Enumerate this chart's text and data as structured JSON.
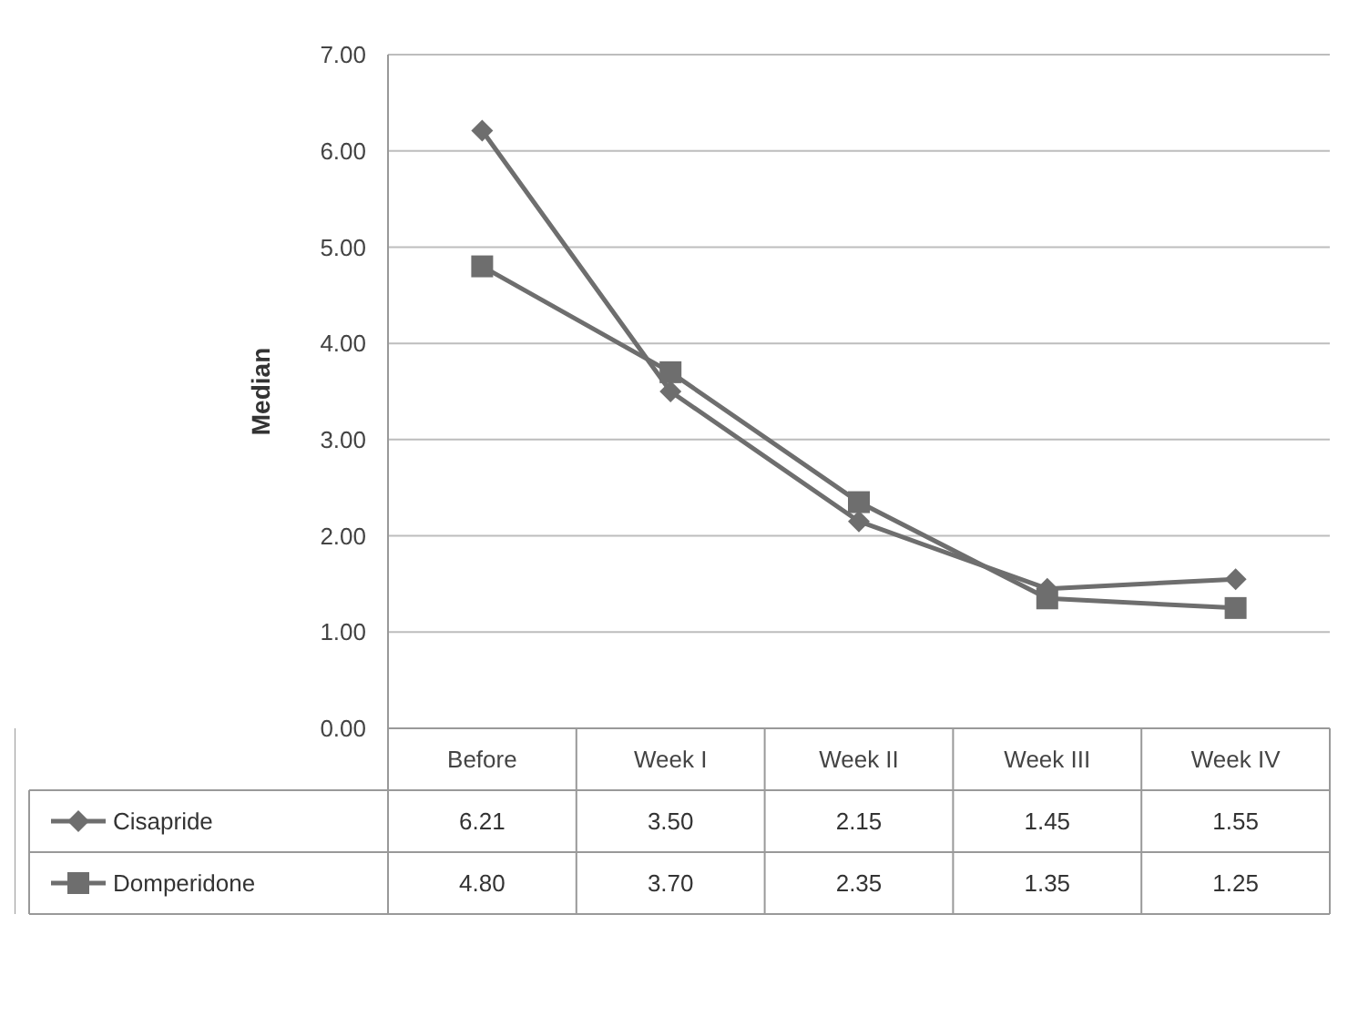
{
  "chart_data": {
    "type": "line",
    "ylabel": "Median",
    "categories": [
      "Before",
      "Week I",
      "Week II",
      "Week III",
      "Week IV"
    ],
    "series": [
      {
        "name": "Cisapride",
        "color": "#6e6e6e",
        "marker": "diamond",
        "values": [
          6.21,
          3.5,
          2.15,
          1.45,
          1.55
        ],
        "value_labels": [
          "6.21",
          "3.50",
          "2.15",
          "1.45",
          "1.55"
        ]
      },
      {
        "name": "Domperidone",
        "color": "#6e6e6e",
        "marker": "square",
        "values": [
          4.8,
          3.7,
          2.35,
          1.35,
          1.25
        ],
        "value_labels": [
          "4.80",
          "3.70",
          "2.35",
          "1.35",
          "1.25"
        ]
      }
    ],
    "ylim": [
      0,
      7
    ],
    "yticks": [
      {
        "value": 0,
        "label": "0.00"
      },
      {
        "value": 1,
        "label": "1.00"
      },
      {
        "value": 2,
        "label": "2.00"
      },
      {
        "value": 3,
        "label": "3.00"
      },
      {
        "value": 4,
        "label": "4.00"
      },
      {
        "value": 5,
        "label": "5.00"
      },
      {
        "value": 6,
        "label": "6.00"
      },
      {
        "value": 7,
        "label": "7.00"
      }
    ],
    "grid": "y",
    "legend": "bottom"
  }
}
